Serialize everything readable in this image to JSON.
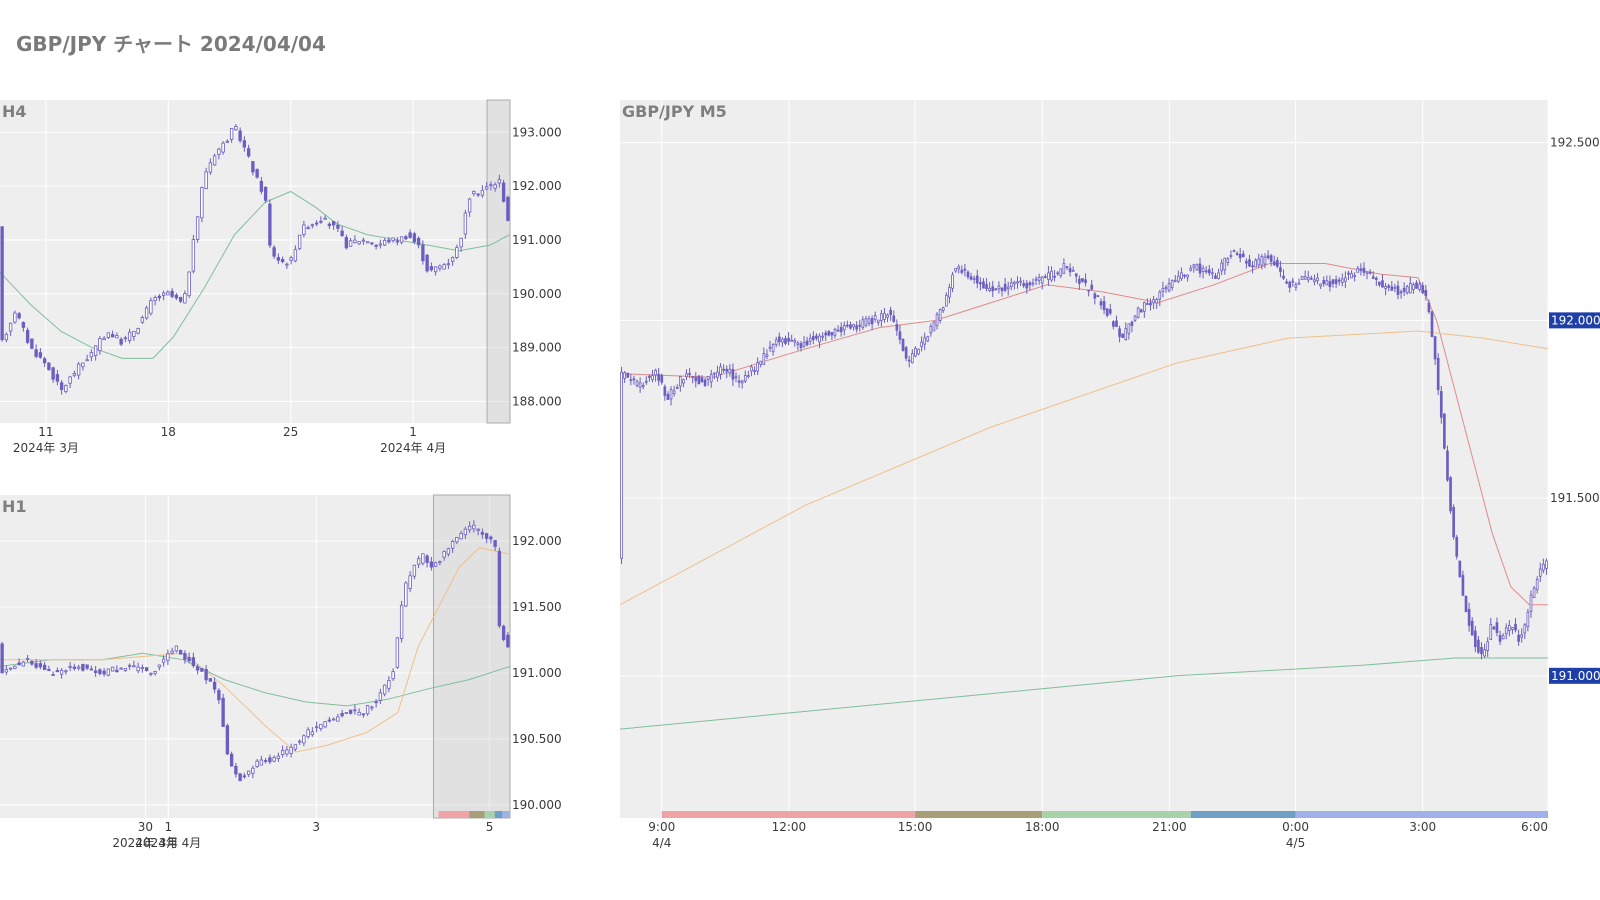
{
  "page": {
    "title": "GBP/JPY チャート 2024/04/04"
  },
  "colors": {
    "plot_bg": "#eeeeee",
    "grid": "#ffffff",
    "candle": "#6a5fc0",
    "ma_green": "#7fbf9a",
    "ma_red": "#e08a8a",
    "ma_orange": "#f0c08a",
    "badge": "#1f3fa8",
    "highlight_border": "#aaaaaa"
  },
  "chart_data": [
    {
      "id": "h4",
      "type": "candlestick",
      "label": "H4",
      "ylim": [
        187.6,
        193.6
      ],
      "yticks": [
        "188.000",
        "189.000",
        "190.000",
        "191.000",
        "192.000",
        "193.000"
      ],
      "ytick_values": [
        188,
        189,
        190,
        191,
        192,
        193
      ],
      "xlim": [
        0,
        100
      ],
      "xticks": [
        {
          "x": 9,
          "label": "11",
          "sub": "2024年 3月"
        },
        {
          "x": 33,
          "label": "18",
          "sub": ""
        },
        {
          "x": 57,
          "label": "25",
          "sub": ""
        },
        {
          "x": 81,
          "label": "1",
          "sub": "2024年 4月"
        }
      ],
      "highlight_x": [
        95.5,
        100
      ],
      "path": [
        [
          0,
          189.0
        ],
        [
          3,
          189.7
        ],
        [
          6,
          189.0
        ],
        [
          9,
          188.7
        ],
        [
          12,
          188.2
        ],
        [
          15,
          188.6
        ],
        [
          18,
          188.9
        ],
        [
          21,
          189.3
        ],
        [
          24,
          189.1
        ],
        [
          27,
          189.4
        ],
        [
          30,
          189.9
        ],
        [
          33,
          190.0
        ],
        [
          36,
          189.8
        ],
        [
          38,
          191.0
        ],
        [
          40,
          192.2
        ],
        [
          42,
          192.6
        ],
        [
          44,
          192.8
        ],
        [
          46,
          193.1
        ],
        [
          48,
          192.7
        ],
        [
          50,
          192.2
        ],
        [
          52,
          191.8
        ],
        [
          53,
          190.8
        ],
        [
          55,
          190.6
        ],
        [
          57,
          190.6
        ],
        [
          59,
          191.2
        ],
        [
          61,
          191.3
        ],
        [
          63,
          191.4
        ],
        [
          66,
          191.2
        ],
        [
          68,
          190.9
        ],
        [
          70,
          191.0
        ],
        [
          72,
          191.0
        ],
        [
          74,
          190.9
        ],
        [
          76,
          191.0
        ],
        [
          78,
          191.0
        ],
        [
          80,
          191.1
        ],
        [
          82,
          190.9
        ],
        [
          84,
          190.4
        ],
        [
          86,
          190.5
        ],
        [
          88,
          190.6
        ],
        [
          90,
          190.9
        ],
        [
          92,
          191.8
        ],
        [
          94,
          191.9
        ],
        [
          96,
          192.0
        ],
        [
          98,
          192.1
        ],
        [
          100,
          191.2
        ]
      ],
      "ma": [
        {
          "color": "ma_green",
          "points": [
            [
              0,
              190.4
            ],
            [
              6,
              189.8
            ],
            [
              12,
              189.3
            ],
            [
              18,
              189.0
            ],
            [
              24,
              188.8
            ],
            [
              30,
              188.8
            ],
            [
              34,
              189.2
            ],
            [
              40,
              190.1
            ],
            [
              46,
              191.1
            ],
            [
              52,
              191.7
            ],
            [
              57,
              191.9
            ],
            [
              62,
              191.6
            ],
            [
              66,
              191.3
            ],
            [
              72,
              191.1
            ],
            [
              78,
              191.0
            ],
            [
              84,
              190.9
            ],
            [
              90,
              190.8
            ],
            [
              96,
              190.9
            ],
            [
              100,
              191.1
            ]
          ]
        }
      ]
    },
    {
      "id": "h1",
      "type": "candlestick",
      "label": "H1",
      "ylim": [
        189.9,
        192.35
      ],
      "yticks": [
        "190.000",
        "190.500",
        "191.000",
        "191.500",
        "192.000"
      ],
      "ytick_values": [
        190.0,
        190.5,
        191.0,
        191.5,
        192.0
      ],
      "xlim": [
        0,
        100
      ],
      "xticks": [
        {
          "x": 28.5,
          "label": "30",
          "sub": "2024年 3月"
        },
        {
          "x": 33,
          "label": "1",
          "sub": "2024年 4月"
        },
        {
          "x": 62,
          "label": "3",
          "sub": ""
        },
        {
          "x": 96,
          "label": "5",
          "sub": ""
        }
      ],
      "highlight_x": [
        85,
        100
      ],
      "session_bar": true,
      "path": [
        [
          0,
          191.0
        ],
        [
          5,
          191.1
        ],
        [
          10,
          191.0
        ],
        [
          15,
          191.05
        ],
        [
          20,
          191.0
        ],
        [
          25,
          191.05
        ],
        [
          30,
          191.0
        ],
        [
          34,
          191.2
        ],
        [
          37,
          191.1
        ],
        [
          40,
          191.0
        ],
        [
          43,
          190.8
        ],
        [
          45,
          190.3
        ],
        [
          47,
          190.2
        ],
        [
          50,
          190.3
        ],
        [
          53,
          190.35
        ],
        [
          56,
          190.4
        ],
        [
          59,
          190.5
        ],
        [
          62,
          190.6
        ],
        [
          65,
          190.65
        ],
        [
          68,
          190.7
        ],
        [
          71,
          190.7
        ],
        [
          74,
          190.8
        ],
        [
          77,
          191.0
        ],
        [
          79,
          191.6
        ],
        [
          81,
          191.8
        ],
        [
          83,
          191.9
        ],
        [
          85,
          191.8
        ],
        [
          87,
          191.9
        ],
        [
          89,
          192.0
        ],
        [
          91,
          192.1
        ],
        [
          93,
          192.1
        ],
        [
          95,
          192.05
        ],
        [
          97,
          192.0
        ],
        [
          98,
          191.3
        ],
        [
          100,
          191.2
        ]
      ],
      "ma": [
        {
          "color": "ma_green",
          "points": [
            [
              0,
              191.05
            ],
            [
              10,
              191.1
            ],
            [
              20,
              191.1
            ],
            [
              28,
              191.15
            ],
            [
              36,
              191.1
            ],
            [
              44,
              190.95
            ],
            [
              52,
              190.85
            ],
            [
              60,
              190.78
            ],
            [
              68,
              190.75
            ],
            [
              76,
              190.8
            ],
            [
              84,
              190.88
            ],
            [
              92,
              190.95
            ],
            [
              100,
              191.05
            ]
          ]
        },
        {
          "color": "ma_orange",
          "points": [
            [
              0,
              191.1
            ],
            [
              20,
              191.1
            ],
            [
              36,
              191.15
            ],
            [
              44,
              190.9
            ],
            [
              52,
              190.6
            ],
            [
              58,
              190.4
            ],
            [
              64,
              190.45
            ],
            [
              72,
              190.55
            ],
            [
              78,
              190.7
            ],
            [
              82,
              191.2
            ],
            [
              86,
              191.5
            ],
            [
              90,
              191.8
            ],
            [
              94,
              191.95
            ],
            [
              100,
              191.9
            ]
          ]
        }
      ]
    },
    {
      "id": "m5",
      "type": "candlestick",
      "label": "GBP/JPY M5",
      "ylim": [
        190.6,
        192.62
      ],
      "yticks": [
        "191.500",
        "192.500"
      ],
      "ytick_values": [
        191.5,
        192.5
      ],
      "badges": [
        {
          "value": 192.0,
          "label": "192.000"
        },
        {
          "value": 191.0,
          "label": "191.000"
        }
      ],
      "xlim": [
        0,
        100
      ],
      "xticks": [
        {
          "x": 4.5,
          "label": "9:00",
          "sub": "4/4"
        },
        {
          "x": 18.2,
          "label": "12:00",
          "sub": ""
        },
        {
          "x": 31.8,
          "label": "15:00",
          "sub": ""
        },
        {
          "x": 45.5,
          "label": "18:00",
          "sub": ""
        },
        {
          "x": 59.2,
          "label": "21:00",
          "sub": ""
        },
        {
          "x": 72.8,
          "label": "0:00",
          "sub": "4/5"
        },
        {
          "x": 86.5,
          "label": "3:00",
          "sub": ""
        },
        {
          "x": 100,
          "label": "6:00",
          "sub": ""
        }
      ],
      "session_bar": true,
      "path": [
        [
          0,
          191.85
        ],
        [
          2,
          191.82
        ],
        [
          4,
          191.85
        ],
        [
          5,
          191.78
        ],
        [
          7,
          191.85
        ],
        [
          9,
          191.82
        ],
        [
          11,
          191.87
        ],
        [
          13,
          191.83
        ],
        [
          15,
          191.88
        ],
        [
          17,
          191.95
        ],
        [
          19,
          191.93
        ],
        [
          21,
          191.95
        ],
        [
          23,
          191.97
        ],
        [
          25,
          191.98
        ],
        [
          27,
          192.0
        ],
        [
          29,
          192.02
        ],
        [
          30,
          191.95
        ],
        [
          31,
          191.88
        ],
        [
          33,
          191.95
        ],
        [
          34,
          192.0
        ],
        [
          35,
          192.05
        ],
        [
          36,
          192.15
        ],
        [
          38,
          192.12
        ],
        [
          40,
          192.08
        ],
        [
          42,
          192.1
        ],
        [
          44,
          192.1
        ],
        [
          46,
          192.12
        ],
        [
          48,
          192.15
        ],
        [
          50,
          192.1
        ],
        [
          52,
          192.05
        ],
        [
          54,
          191.95
        ],
        [
          56,
          192.03
        ],
        [
          58,
          192.07
        ],
        [
          60,
          192.12
        ],
        [
          62,
          192.15
        ],
        [
          64,
          192.12
        ],
        [
          66,
          192.2
        ],
        [
          68,
          192.15
        ],
        [
          70,
          192.18
        ],
        [
          72,
          192.1
        ],
        [
          74,
          192.12
        ],
        [
          76,
          192.1
        ],
        [
          78,
          192.12
        ],
        [
          80,
          192.14
        ],
        [
          82,
          192.1
        ],
        [
          84,
          192.08
        ],
        [
          86,
          192.1
        ],
        [
          87,
          192.05
        ],
        [
          88,
          191.85
        ],
        [
          89,
          191.6
        ],
        [
          90,
          191.35
        ],
        [
          91,
          191.2
        ],
        [
          92,
          191.1
        ],
        [
          93,
          191.05
        ],
        [
          94,
          191.15
        ],
        [
          95,
          191.1
        ],
        [
          96,
          191.15
        ],
        [
          97,
          191.1
        ],
        [
          98,
          191.2
        ],
        [
          99,
          191.3
        ],
        [
          100,
          191.32
        ]
      ],
      "ma": [
        {
          "color": "ma_red",
          "points": [
            [
              0,
              191.85
            ],
            [
              10,
              191.84
            ],
            [
              20,
              191.92
            ],
            [
              28,
              191.98
            ],
            [
              34,
              192.0
            ],
            [
              40,
              192.05
            ],
            [
              46,
              192.1
            ],
            [
              52,
              192.08
            ],
            [
              58,
              192.05
            ],
            [
              64,
              192.1
            ],
            [
              70,
              192.16
            ],
            [
              76,
              192.16
            ],
            [
              82,
              192.13
            ],
            [
              86,
              192.12
            ],
            [
              88,
              192.0
            ],
            [
              90,
              191.8
            ],
            [
              92,
              191.6
            ],
            [
              94,
              191.4
            ],
            [
              96,
              191.25
            ],
            [
              98,
              191.2
            ],
            [
              100,
              191.2
            ]
          ]
        },
        {
          "color": "ma_orange",
          "points": [
            [
              0,
              191.2
            ],
            [
              20,
              191.48
            ],
            [
              40,
              191.7
            ],
            [
              60,
              191.88
            ],
            [
              72,
              191.95
            ],
            [
              86,
              191.97
            ],
            [
              93,
              191.95
            ],
            [
              100,
              191.92
            ]
          ]
        },
        {
          "color": "ma_green",
          "points": [
            [
              0,
              190.85
            ],
            [
              20,
              190.9
            ],
            [
              40,
              190.95
            ],
            [
              60,
              191.0
            ],
            [
              80,
              191.03
            ],
            [
              90,
              191.05
            ],
            [
              100,
              191.05
            ]
          ]
        }
      ]
    }
  ]
}
